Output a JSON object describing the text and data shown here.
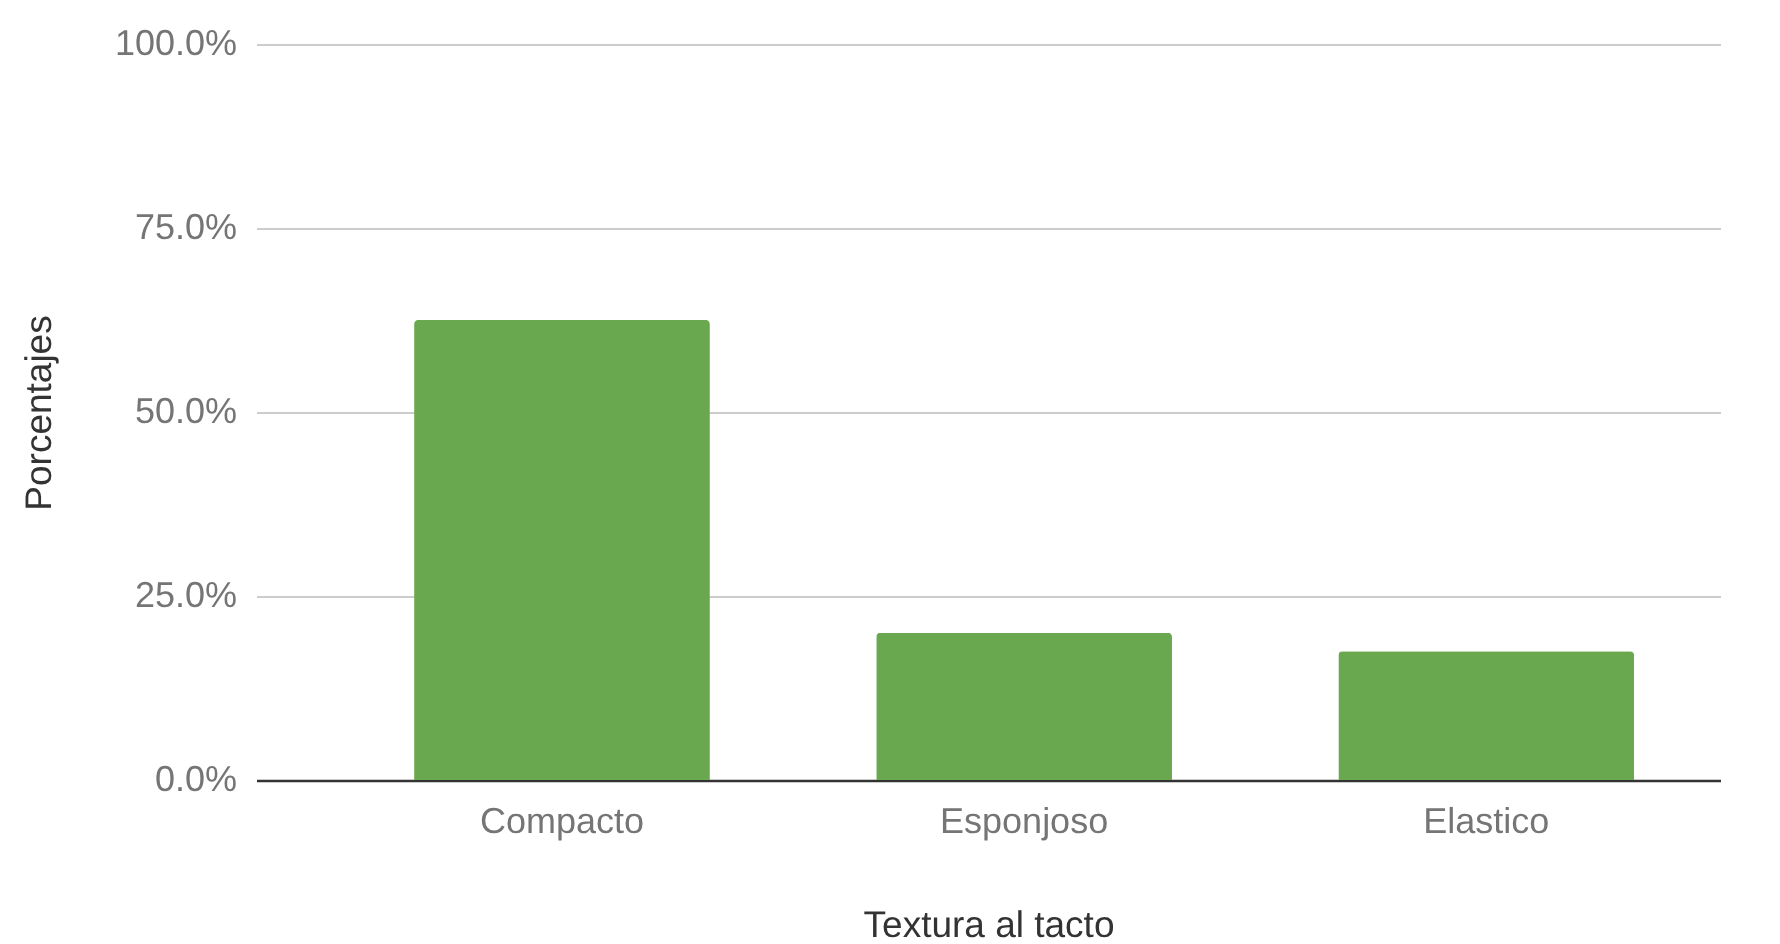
{
  "chart_data": {
    "type": "bar",
    "xlabel": "Textura al tacto",
    "ylabel": "Porcentajes",
    "categories": [
      "Compacto",
      "Esponjoso",
      "Elastico"
    ],
    "values": [
      62.5,
      20,
      17.5
    ],
    "color": "#6aa84f",
    "ylim": [
      0,
      100
    ],
    "yticks": [
      {
        "value": 0,
        "label": "0.0%"
      },
      {
        "value": 25,
        "label": "25.0%"
      },
      {
        "value": 50,
        "label": "50.0%"
      },
      {
        "value": 75,
        "label": "75.0%"
      },
      {
        "value": 100,
        "label": "100.0%"
      }
    ],
    "grid": "y"
  }
}
